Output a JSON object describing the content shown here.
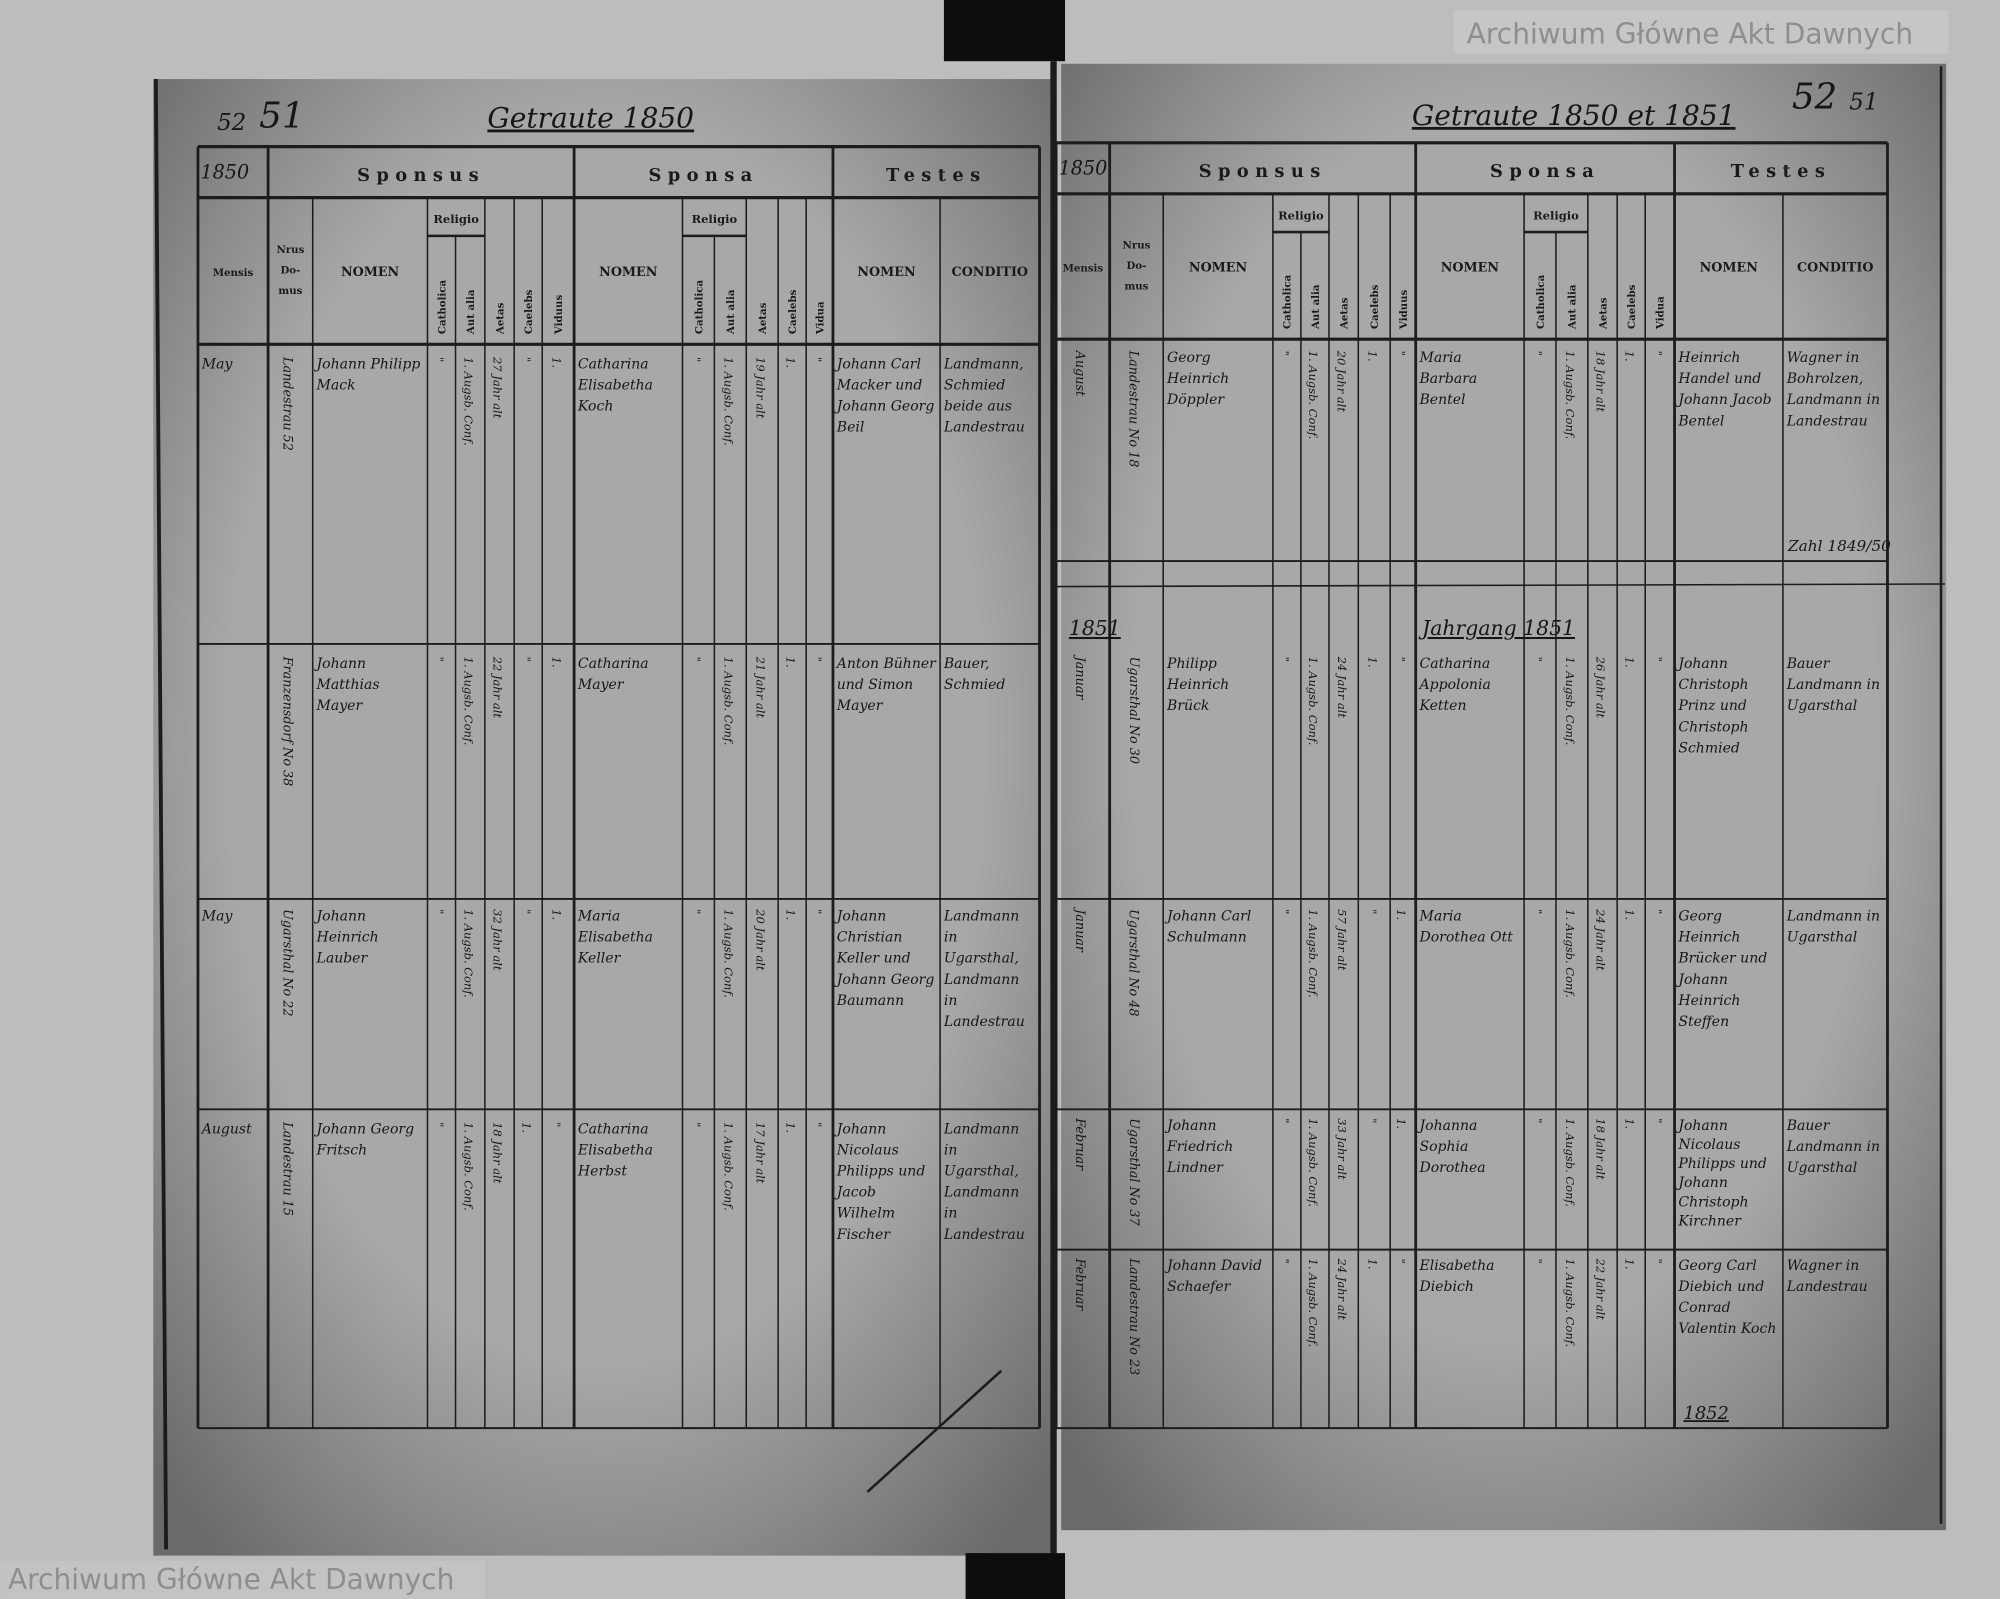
{
  "left_page": {
    "page_number": "51",
    "old_page_number": "52",
    "title": "Getraute 1850",
    "year": "1850",
    "header": {
      "sponsus": "Sponsus",
      "sponsa": "Sponsa",
      "testes": "Testes",
      "mensis": "Mensis",
      "nrus_domus": "Nrus Do- mus",
      "nomen": "NOMEN",
      "religio": "Religio",
      "catholica": "Catholica",
      "aut_alia": "Aut alia",
      "aetas": "Aetas",
      "caelebs": "Caelebs",
      "viduus": "Viduus",
      "vidua": "Vidua",
      "conditio": "CONDITIO"
    },
    "entries": [
      {
        "mensis": "May",
        "domus": "Landestrau 52",
        "sponsus": "Johann Philipp Mack",
        "s_cath": "\"",
        "s_aut": "1. Augsb. Conf.",
        "s_aetas": "27 Jahr alt",
        "s_caelebs": "\"",
        "s_viduus": "1.",
        "sponsa": "Catharina Elisabetha Koch",
        "a_cath": "\"",
        "a_aut": "1. Augsb. Conf.",
        "a_aetas": "19 Jahr alt",
        "a_caelebs": "1.",
        "a_vidua": "\"",
        "testes": "Johann Carl Macker und Johann Georg Beil",
        "conditio": "Landmann, Schmied beide aus Landestrau"
      },
      {
        "mensis": "",
        "domus": "Franzensdorf No 38",
        "sponsus": "Johann Matthias Mayer",
        "s_cath": "\"",
        "s_aut": "1. Augsb. Conf.",
        "s_aetas": "22 Jahr alt",
        "s_caelebs": "\"",
        "s_viduus": "1.",
        "sponsa": "Catharina Mayer",
        "a_cath": "\"",
        "a_aut": "1. Augsb. Conf.",
        "a_aetas": "21 Jahr alt",
        "a_caelebs": "1.",
        "a_vidua": "\"",
        "testes": "Anton Bühner und Simon Mayer",
        "conditio": "Bauer, Schmied"
      },
      {
        "mensis": "May",
        "domus": "Ugarsthal No 22",
        "sponsus": "Johann Heinrich Lauber",
        "s_cath": "\"",
        "s_aut": "1. Augsb. Conf.",
        "s_aetas": "32 Jahr alt",
        "s_caelebs": "\"",
        "s_viduus": "1.",
        "sponsa": "Maria Elisabetha Keller",
        "a_cath": "\"",
        "a_aut": "1. Augsb. Conf.",
        "a_aetas": "20 Jahr alt",
        "a_caelebs": "1.",
        "a_vidua": "\"",
        "testes": "Johann Christian Keller und Johann Georg Baumann",
        "conditio": "Landmann in Ugarsthal, Landmann in Landestrau"
      },
      {
        "mensis": "August",
        "domus": "Landestrau 15",
        "sponsus": "Johann Georg Fritsch",
        "s_cath": "\"",
        "s_aut": "1. Augsb. Conf.",
        "s_aetas": "18 Jahr alt",
        "s_caelebs": "1.",
        "s_viduus": "\"",
        "sponsa": "Catharina Elisabetha Herbst",
        "a_cath": "\"",
        "a_aut": "1. Augsb. Conf.",
        "a_aetas": "17 Jahr alt",
        "a_caelebs": "1.",
        "a_vidua": "\"",
        "testes": "Johann Nicolaus Philipps und Jacob Wilhelm Fischer",
        "conditio": "Landmann in Ugarsthal, Landmann in Landestrau"
      }
    ]
  },
  "right_page": {
    "page_number": "52",
    "old_page_number": "51",
    "title": "Getraute 1850 et 1851",
    "year": "1850",
    "year_1851": "1851",
    "jahrgang": "Jahrgang 1851",
    "zahl_note": "Zahl 1849/50",
    "bottom_note": "1852",
    "entries": [
      {
        "mensis": "August",
        "domus": "Landestrau No 18",
        "sponsus": "Georg Heinrich Döppler",
        "s_cath": "\"",
        "s_aut": "1. Augsb. Conf.",
        "s_aetas": "20 Jahr alt",
        "s_caelebs": "1.",
        "s_viduus": "\"",
        "sponsa": "Maria Barbara Bentel",
        "a_cath": "\"",
        "a_aut": "1. Augsb. Conf.",
        "a_aetas": "18 Jahr alt",
        "a_caelebs": "1.",
        "a_vidua": "\"",
        "testes": "Heinrich Handel und Johann Jacob Bentel",
        "conditio": "Wagner in Bohrolzen, Landmann in Landestrau"
      },
      {
        "mensis": "Januar",
        "domus": "Ugarsthal No 30",
        "sponsus": "Philipp Heinrich Brück",
        "s_cath": "\"",
        "s_aut": "1. Augsb. Conf.",
        "s_aetas": "24 Jahr alt",
        "s_caelebs": "1.",
        "s_viduus": "\"",
        "sponsa": "Catharina Appolonia Ketten",
        "a_cath": "\"",
        "a_aut": "1. Augsb. Conf.",
        "a_aetas": "26 Jahr alt",
        "a_caelebs": "1.",
        "a_vidua": "\"",
        "testes": "Johann Christoph Prinz und Christoph Schmied",
        "conditio": "Bauer Landmann in Ugarsthal"
      },
      {
        "mensis": "Januar",
        "domus": "Ugarsthal No 48",
        "sponsus": "Johann Carl Schulmann",
        "s_cath": "\"",
        "s_aut": "1. Augsb. Conf.",
        "s_aetas": "57 Jahr alt",
        "s_caelebs": "\"",
        "s_viduus": "1.",
        "sponsa": "Maria Dorothea Ott",
        "a_cath": "\"",
        "a_aut": "1. Augsb. Conf.",
        "a_aetas": "24 Jahr alt",
        "a_caelebs": "1.",
        "a_vidua": "\"",
        "testes": "Georg Heinrich Brücker und Johann Heinrich Steffen",
        "conditio": "Landmann in Ugarsthal"
      },
      {
        "mensis": "Februar",
        "domus": "Ugarsthal No 37",
        "sponsus": "Johann Friedrich Lindner",
        "s_cath": "\"",
        "s_aut": "1. Augsb. Conf.",
        "s_aetas": "33 Jahr alt",
        "s_caelebs": "\"",
        "s_viduus": "1.",
        "sponsa": "Johanna Sophia Dorothea",
        "a_cath": "\"",
        "a_aut": "1. Augsb. Conf.",
        "a_aetas": "18 Jahr alt",
        "a_caelebs": "1.",
        "a_vidua": "\"",
        "testes": "Johann Nicolaus Philipps und Johann Christoph Kirchner",
        "conditio": "Bauer Landmann in Ugarsthal"
      },
      {
        "mensis": "Februar",
        "domus": "Landestrau No 23",
        "sponsus": "Johann David Schaefer",
        "s_cath": "\"",
        "s_aut": "1. Augsb. Conf.",
        "s_aetas": "24 Jahr alt",
        "s_caelebs": "1.",
        "s_viduus": "\"",
        "sponsa": "Elisabetha Diebich",
        "a_cath": "\"",
        "a_aut": "1. Augsb. Conf.",
        "a_aetas": "22 Jahr alt",
        "a_caelebs": "1.",
        "a_vidua": "\"",
        "testes": "Georg Carl Diebich und Conrad Valentin Koch",
        "conditio": "Wagner in Landestrau"
      }
    ]
  },
  "watermark": "Archiwum Główne Akt Dawnych",
  "colors": {
    "paper": "#a6a6a6",
    "ink": "#1a1a1a",
    "background": "#b9b9b9",
    "binding": "#0d0d0d"
  }
}
